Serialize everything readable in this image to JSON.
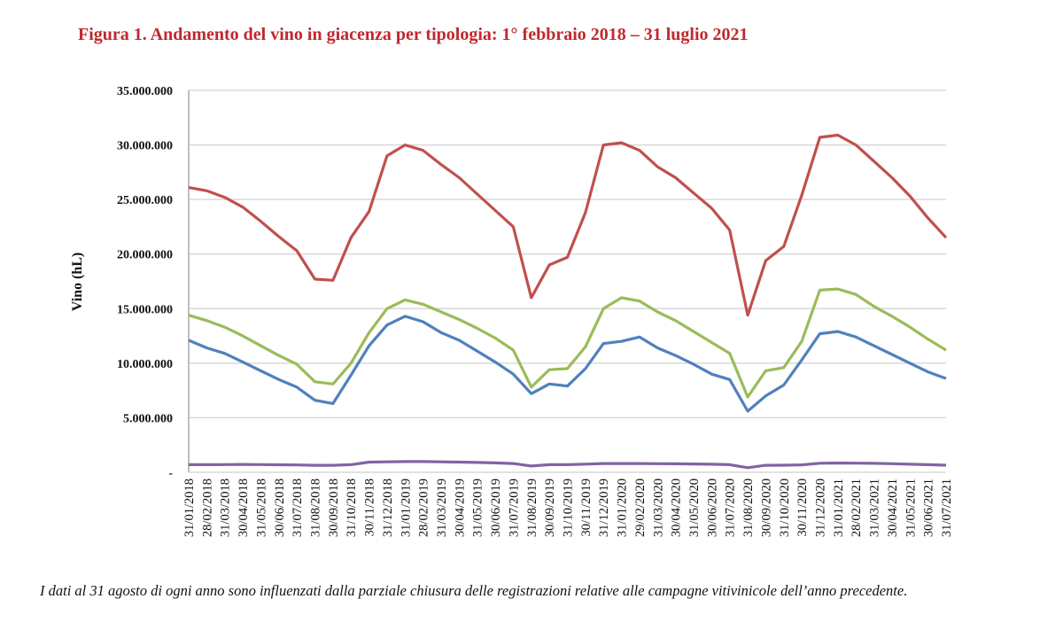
{
  "title": "Figura 1. Andamento del vino in giacenza per tipologia: 1° febbraio 2018 – 31 luglio 2021",
  "footnote": "I dati al 31 agosto di ogni anno sono influenzati dalla parziale chiusura delle registrazioni relative alle campagne vitivinicole dell’anno precedente.",
  "chart_data": {
    "type": "line",
    "title": "",
    "xlabel": "",
    "ylabel": "Vino (hL)",
    "ylim": [
      0,
      35000000
    ],
    "yticks": [
      0,
      5000000,
      10000000,
      15000000,
      20000000,
      25000000,
      30000000,
      35000000
    ],
    "ytick_labels": [
      "-",
      "5.000.000",
      "10.000.000",
      "15.000.000",
      "20.000.000",
      "25.000.000",
      "30.000.000",
      "35.000.000"
    ],
    "grid": "horizontal",
    "legend": "none",
    "categories": [
      "31/01/2018",
      "28/02/2018",
      "31/03/2018",
      "30/04/2018",
      "31/05/2018",
      "30/06/2018",
      "31/07/2018",
      "31/08/2018",
      "30/09/2018",
      "31/10/2018",
      "30/11/2018",
      "31/12/2018",
      "31/01/2019",
      "28/02/2019",
      "31/03/2019",
      "30/04/2019",
      "31/05/2019",
      "30/06/2019",
      "31/07/2019",
      "31/08/2019",
      "30/09/2019",
      "31/10/2019",
      "30/11/2019",
      "31/12/2019",
      "31/01/2020",
      "29/02/2020",
      "31/03/2020",
      "30/04/2020",
      "31/05/2020",
      "30/06/2020",
      "31/07/2020",
      "31/08/2020",
      "30/09/2020",
      "31/10/2020",
      "30/11/2020",
      "31/12/2020",
      "31/01/2021",
      "28/02/2021",
      "31/03/2021",
      "30/04/2021",
      "31/05/2021",
      "30/06/2021",
      "31/07/2021"
    ],
    "series": [
      {
        "color": "#c0504d",
        "values": [
          26100000,
          25800000,
          25200000,
          24300000,
          23000000,
          21600000,
          20300000,
          17700000,
          17600000,
          21500000,
          23900000,
          29000000,
          30000000,
          29500000,
          28200000,
          27000000,
          25500000,
          24000000,
          22500000,
          16000000,
          19000000,
          19700000,
          23800000,
          30000000,
          30200000,
          29500000,
          28000000,
          27000000,
          25600000,
          24200000,
          22200000,
          14400000,
          19400000,
          20700000,
          25400000,
          30700000,
          30900000,
          30000000,
          28500000,
          27000000,
          25300000,
          23300000,
          21500000
        ]
      },
      {
        "color": "#9bbb59",
        "values": [
          14400000,
          13900000,
          13300000,
          12500000,
          11600000,
          10700000,
          9900000,
          8300000,
          8100000,
          10000000,
          12800000,
          15000000,
          15800000,
          15400000,
          14700000,
          14000000,
          13200000,
          12300000,
          11200000,
          7800000,
          9400000,
          9500000,
          11500000,
          15000000,
          16000000,
          15700000,
          14700000,
          13900000,
          12900000,
          11900000,
          10900000,
          6900000,
          9300000,
          9600000,
          12000000,
          16700000,
          16800000,
          16300000,
          15200000,
          14300000,
          13300000,
          12200000,
          11200000
        ]
      },
      {
        "color": "#4f81bd",
        "values": [
          12100000,
          11400000,
          10900000,
          10100000,
          9300000,
          8500000,
          7800000,
          6600000,
          6300000,
          8900000,
          11600000,
          13500000,
          14300000,
          13800000,
          12800000,
          12100000,
          11100000,
          10100000,
          9000000,
          7200000,
          8100000,
          7900000,
          9500000,
          11800000,
          12000000,
          12400000,
          11400000,
          10700000,
          9900000,
          9000000,
          8500000,
          5600000,
          7000000,
          8000000,
          10300000,
          12700000,
          12900000,
          12400000,
          11600000,
          10800000,
          10000000,
          9200000,
          8600000
        ]
      },
      {
        "color": "#8064a2",
        "values": [
          700000,
          700000,
          710000,
          720000,
          710000,
          690000,
          670000,
          640000,
          640000,
          700000,
          930000,
          960000,
          980000,
          980000,
          960000,
          930000,
          900000,
          860000,
          800000,
          580000,
          700000,
          700000,
          750000,
          800000,
          800000,
          800000,
          790000,
          780000,
          760000,
          740000,
          700000,
          420000,
          640000,
          650000,
          680000,
          830000,
          850000,
          840000,
          820000,
          790000,
          740000,
          700000,
          650000
        ]
      }
    ]
  }
}
